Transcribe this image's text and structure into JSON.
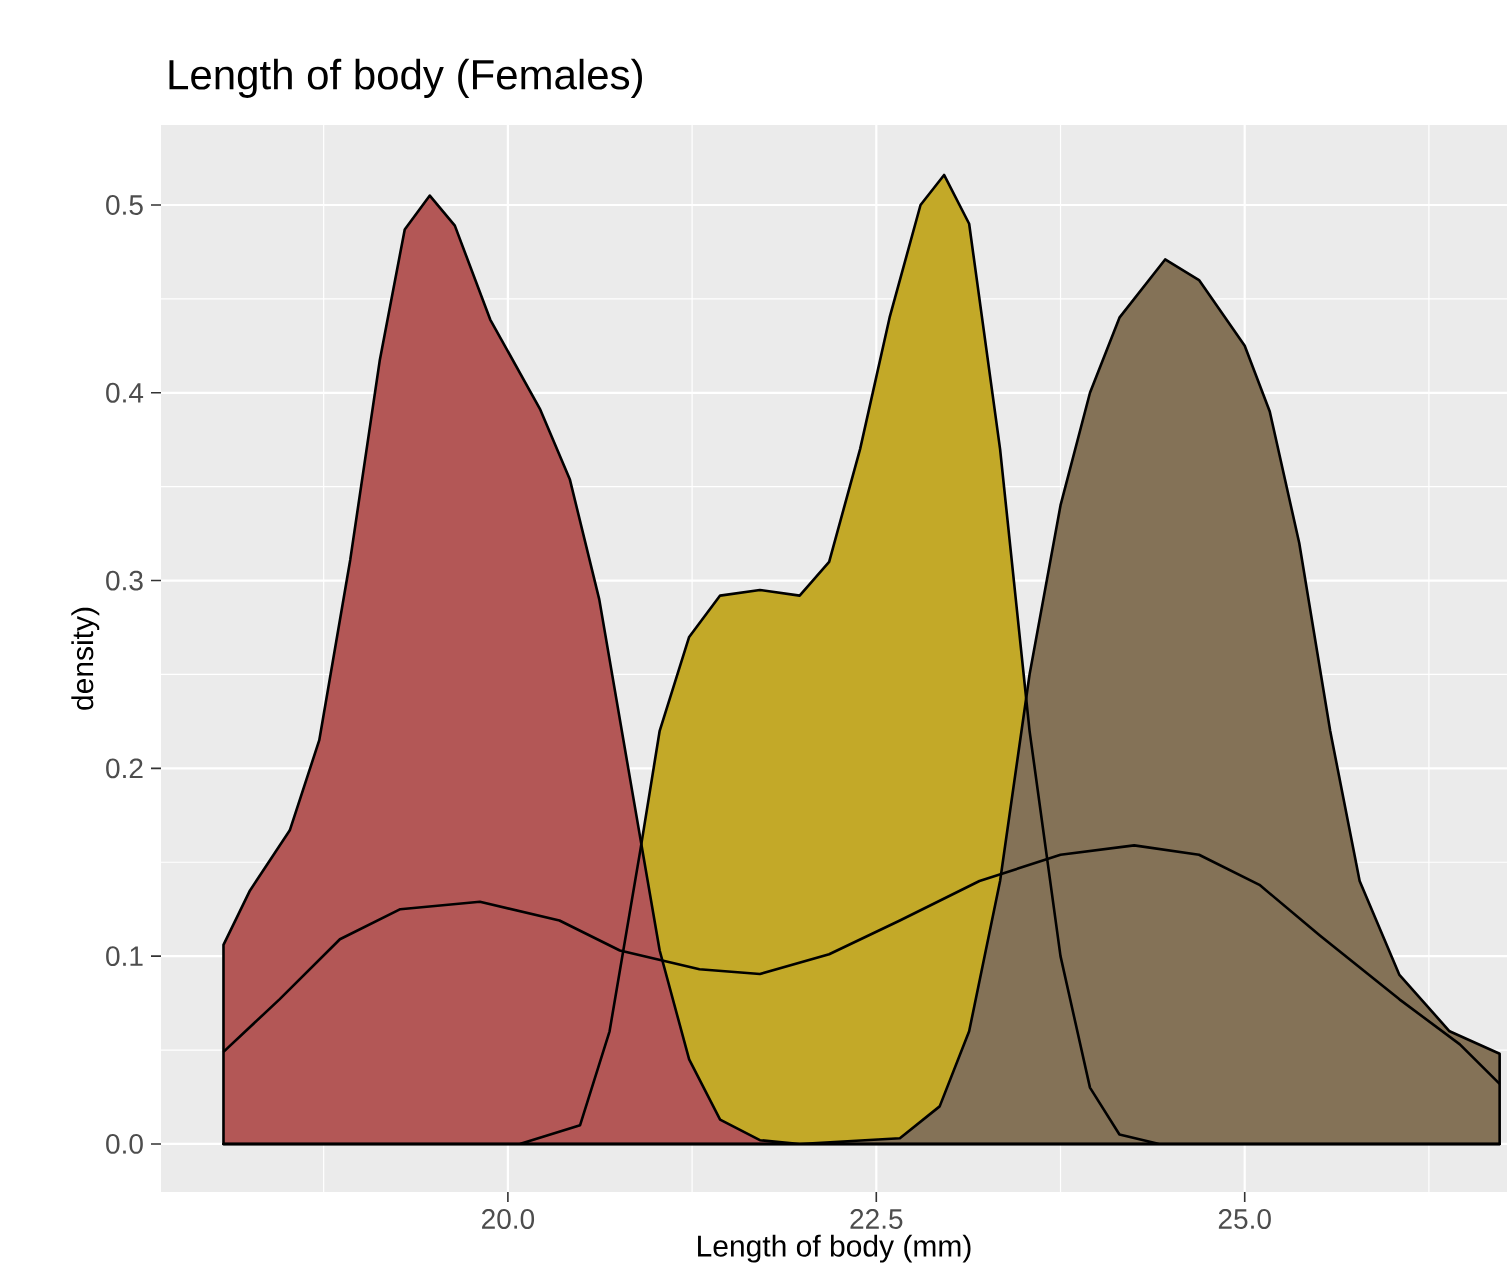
{
  "chart_data": {
    "type": "area",
    "title": "Length of body (Females)",
    "xlabel": "Length of body (mm)",
    "ylabel": "density)",
    "grid": true,
    "xlim": [
      17.646,
      26.78
    ],
    "ylim": [
      -0.0256,
      0.5426
    ],
    "xticks": [
      {
        "value": 20,
        "label": "20.0"
      },
      {
        "value": 22.5,
        "label": "22.5"
      },
      {
        "value": 25,
        "label": "25.0"
      }
    ],
    "yticks": [
      {
        "value": 0,
        "label": "0.0"
      },
      {
        "value": 0.1,
        "label": "0.1"
      },
      {
        "value": 0.2,
        "label": "0.2"
      },
      {
        "value": 0.3,
        "label": "0.3"
      },
      {
        "value": 0.4,
        "label": "0.4"
      },
      {
        "value": 0.5,
        "label": "0.5"
      }
    ],
    "series": [
      {
        "color": "#c3a928",
        "x": [
          18.07,
          19.5,
          20.08,
          20.49,
          20.69,
          20.9,
          21.03,
          21.23,
          21.44,
          21.71,
          21.98,
          22.18,
          22.39,
          22.59,
          22.8,
          22.96,
          23.13,
          23.34,
          23.54,
          23.75,
          23.95,
          24.15,
          24.42,
          26.73
        ],
        "values": [
          0,
          0,
          0,
          0.01,
          0.06,
          0.157,
          0.22,
          0.27,
          0.292,
          0.295,
          0.292,
          0.31,
          0.37,
          0.44,
          0.5,
          0.516,
          0.49,
          0.37,
          0.22,
          0.1,
          0.03,
          0.005,
          0,
          0
        ]
      },
      {
        "color": "#b35756",
        "x": [
          18.07,
          18.25,
          18.52,
          18.72,
          18.93,
          19.13,
          19.3,
          19.47,
          19.64,
          19.88,
          20.22,
          20.42,
          20.62,
          20.83,
          21.03,
          21.23,
          21.44,
          21.71,
          21.98,
          23.0,
          24.5,
          26.73
        ],
        "values": [
          0.106,
          0.135,
          0.167,
          0.215,
          0.311,
          0.417,
          0.487,
          0.505,
          0.489,
          0.439,
          0.391,
          0.354,
          0.29,
          0.194,
          0.103,
          0.045,
          0.013,
          0.002,
          0,
          0,
          0,
          0
        ]
      },
      {
        "color": "#847257",
        "x": [
          18.07,
          20.5,
          21.98,
          22.66,
          22.93,
          23.13,
          23.34,
          23.54,
          23.75,
          23.95,
          24.15,
          24.46,
          24.69,
          25.0,
          25.17,
          25.37,
          25.58,
          25.78,
          26.05,
          26.39,
          26.73
        ],
        "values": [
          0,
          0,
          0,
          0.003,
          0.02,
          0.06,
          0.14,
          0.25,
          0.34,
          0.4,
          0.44,
          0.471,
          0.46,
          0.425,
          0.39,
          0.32,
          0.22,
          0.14,
          0.09,
          0.06,
          0.048
        ]
      },
      {
        "type": "line",
        "color": "#000000",
        "x": [
          18.07,
          18.45,
          18.86,
          19.27,
          19.81,
          20.35,
          20.76,
          21.3,
          21.71,
          22.18,
          22.66,
          23.2,
          23.75,
          24.25,
          24.69,
          25.1,
          25.51,
          26.05,
          26.46,
          26.73
        ],
        "values": [
          0.049,
          0.077,
          0.109,
          0.125,
          0.129,
          0.119,
          0.103,
          0.093,
          0.0905,
          0.101,
          0.119,
          0.14,
          0.154,
          0.159,
          0.154,
          0.138,
          0.111,
          0.077,
          0.053,
          0.032
        ]
      }
    ]
  }
}
